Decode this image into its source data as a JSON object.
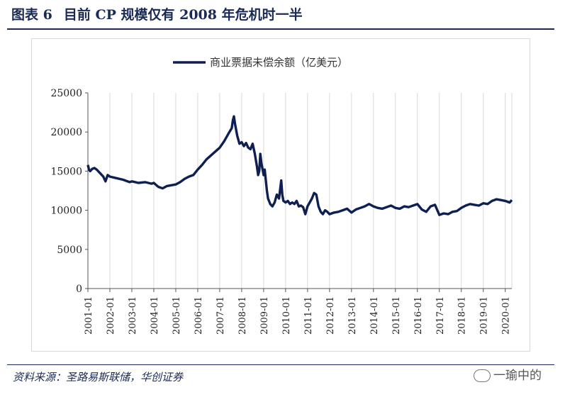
{
  "header": {
    "figure_label": "图表 6",
    "title": "目前 CP 规模仅有 2008 年危机时一半"
  },
  "footer": {
    "source": "资料来源：圣路易斯联储，华创证券",
    "watermark": "一瑜中的"
  },
  "chart_data": {
    "type": "line",
    "title": "",
    "legend": [
      "商业票据未偿余额（亿美元）"
    ],
    "legend_position": "top-center",
    "xlabel": "",
    "ylabel": "",
    "ylim": [
      0,
      25000
    ],
    "y_ticks": [
      0,
      5000,
      10000,
      15000,
      20000,
      25000
    ],
    "y_tick_labels": [
      "0",
      "5000",
      "10000",
      "15000",
      "20000",
      "25000"
    ],
    "x_range": [
      2001.0,
      2020.3
    ],
    "x_ticks": [
      2001,
      2002,
      2003,
      2004,
      2005,
      2006,
      2007,
      2008,
      2009,
      2010,
      2011,
      2012,
      2013,
      2014,
      2015,
      2016,
      2017,
      2018,
      2019,
      2020
    ],
    "x_tick_labels": [
      "2001-01",
      "2002-01",
      "2003-01",
      "2004-01",
      "2005-01",
      "2006-01",
      "2007-01",
      "2008-01",
      "2009-01",
      "2010-01",
      "2011-01",
      "2012-01",
      "2013-01",
      "2014-01",
      "2015-01",
      "2016-01",
      "2017-01",
      "2018-01",
      "2019-01",
      "2020-01"
    ],
    "grid": "vertical",
    "line_color": "#0e1f52",
    "series": [
      {
        "name": "商业票据未偿余额（亿美元）",
        "x": [
          2001.0,
          2001.05,
          2001.1,
          2001.2,
          2001.3,
          2001.4,
          2001.5,
          2001.6,
          2001.7,
          2001.8,
          2001.9,
          2002.0,
          2002.3,
          2002.6,
          2002.9,
          2003.0,
          2003.3,
          2003.6,
          2003.9,
          2004.0,
          2004.2,
          2004.4,
          2004.6,
          2004.8,
          2005.0,
          2005.2,
          2005.4,
          2005.6,
          2005.8,
          2006.0,
          2006.2,
          2006.4,
          2006.6,
          2006.8,
          2007.0,
          2007.2,
          2007.4,
          2007.55,
          2007.6,
          2007.65,
          2007.7,
          2007.8,
          2007.9,
          2008.0,
          2008.1,
          2008.2,
          2008.3,
          2008.4,
          2008.5,
          2008.6,
          2008.7,
          2008.75,
          2008.8,
          2008.85,
          2008.9,
          2009.0,
          2009.05,
          2009.1,
          2009.15,
          2009.2,
          2009.3,
          2009.4,
          2009.5,
          2009.6,
          2009.7,
          2009.8,
          2009.85,
          2009.9,
          2010.0,
          2010.1,
          2010.2,
          2010.3,
          2010.4,
          2010.5,
          2010.6,
          2010.7,
          2010.8,
          2010.9,
          2011.0,
          2011.1,
          2011.2,
          2011.3,
          2011.4,
          2011.5,
          2011.6,
          2011.7,
          2011.8,
          2011.9,
          2012.0,
          2012.2,
          2012.4,
          2012.6,
          2012.8,
          2013.0,
          2013.2,
          2013.4,
          2013.6,
          2013.8,
          2014.0,
          2014.2,
          2014.4,
          2014.6,
          2014.8,
          2015.0,
          2015.2,
          2015.4,
          2015.6,
          2015.8,
          2016.0,
          2016.2,
          2016.4,
          2016.6,
          2016.8,
          2017.0,
          2017.2,
          2017.4,
          2017.6,
          2017.8,
          2018.0,
          2018.2,
          2018.4,
          2018.6,
          2018.8,
          2019.0,
          2019.2,
          2019.4,
          2019.6,
          2019.8,
          2020.0,
          2020.2,
          2020.3
        ],
        "values": [
          15800,
          15200,
          15000,
          15300,
          15400,
          15200,
          14900,
          14600,
          14300,
          13700,
          14500,
          14300,
          14100,
          13900,
          13600,
          13700,
          13500,
          13600,
          13400,
          13500,
          13000,
          12800,
          13100,
          13200,
          13300,
          13600,
          14000,
          14300,
          14500,
          15200,
          15800,
          16500,
          17000,
          17500,
          18000,
          18800,
          19800,
          20500,
          21500,
          22000,
          21000,
          19500,
          18500,
          18700,
          18200,
          18600,
          18000,
          17800,
          18500,
          17200,
          15500,
          14500,
          15000,
          17200,
          16000,
          14500,
          15200,
          13800,
          12500,
          11500,
          10800,
          10500,
          11000,
          12000,
          11500,
          13800,
          12000,
          11200,
          11000,
          11200,
          10800,
          11000,
          10800,
          11200,
          10500,
          10600,
          10400,
          9500,
          10500,
          11000,
          11500,
          12200,
          12000,
          10500,
          9800,
          9500,
          10000,
          9800,
          9500,
          9700,
          9800,
          10000,
          10200,
          9700,
          10100,
          10300,
          10500,
          10800,
          10500,
          10300,
          10200,
          10400,
          10600,
          10300,
          10200,
          10500,
          10400,
          10600,
          10800,
          10100,
          9800,
          10500,
          10700,
          9400,
          9600,
          9500,
          9800,
          9900,
          10300,
          10600,
          10800,
          10700,
          10600,
          10900,
          10800,
          11200,
          11400,
          11300,
          11200,
          11000,
          11300
        ]
      }
    ]
  }
}
